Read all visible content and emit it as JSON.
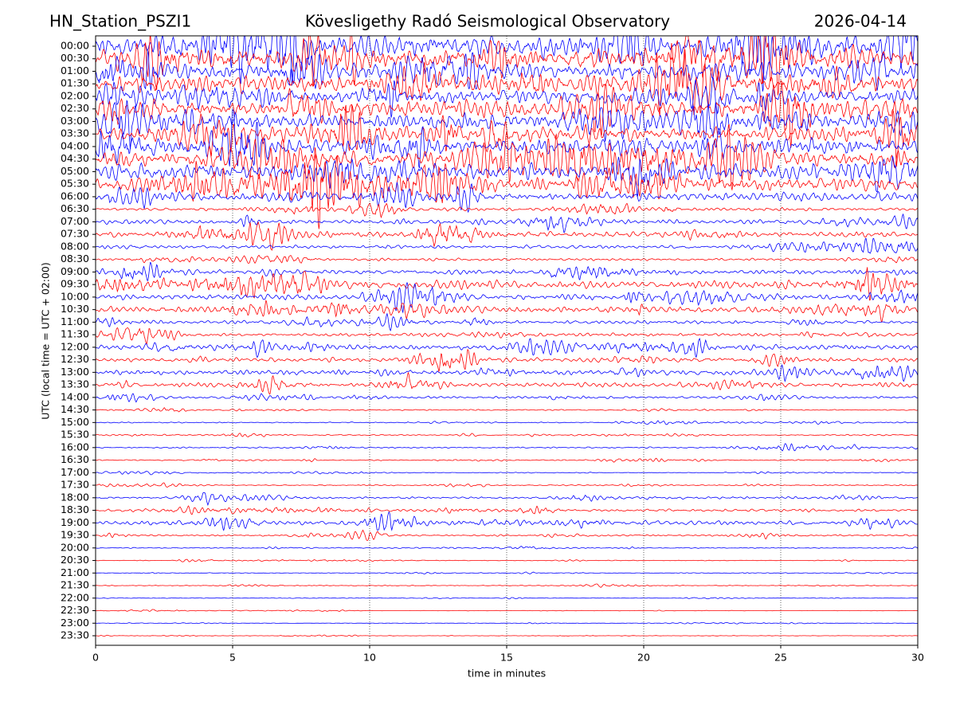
{
  "chart_data": {
    "type": "helicorder",
    "title_left": "HN_Station_PSZI1",
    "title": "Kövesligethy Radó Seismological Observatory",
    "title_right": "2026-04-14",
    "ylabel": "UTC (local time = UTC + 02:00)",
    "xlabel": "time in minutes",
    "xlim": [
      0,
      30
    ],
    "xticks": [
      0,
      5,
      10,
      15,
      20,
      25,
      30
    ],
    "grid": true,
    "colors": [
      "#0000ff",
      "#ff0000"
    ],
    "categories": [
      "00:00",
      "00:30",
      "01:00",
      "01:30",
      "02:00",
      "02:30",
      "03:00",
      "03:30",
      "04:00",
      "04:30",
      "05:00",
      "05:30",
      "06:00",
      "06:30",
      "07:00",
      "07:30",
      "08:00",
      "08:30",
      "09:00",
      "09:30",
      "10:00",
      "10:30",
      "11:00",
      "11:30",
      "12:00",
      "12:30",
      "13:00",
      "13:30",
      "14:00",
      "14:30",
      "15:00",
      "15:30",
      "16:00",
      "16:30",
      "17:00",
      "17:30",
      "18:00",
      "18:30",
      "19:00",
      "19:30",
      "20:00",
      "20:30",
      "21:00",
      "21:30",
      "22:00",
      "22:30",
      "23:00",
      "23:30"
    ],
    "values": [
      1.0,
      0.9,
      0.8,
      0.8,
      0.7,
      0.8,
      0.7,
      0.7,
      0.7,
      0.8,
      0.7,
      0.6,
      0.4,
      0.15,
      0.2,
      0.25,
      0.15,
      0.12,
      0.2,
      0.35,
      0.25,
      0.3,
      0.15,
      0.15,
      0.25,
      0.2,
      0.25,
      0.2,
      0.12,
      0.05,
      0.05,
      0.05,
      0.06,
      0.05,
      0.04,
      0.05,
      0.1,
      0.12,
      0.2,
      0.08,
      0.04,
      0.03,
      0.03,
      0.03,
      0.02,
      0.02,
      0.02,
      0.02
    ]
  }
}
